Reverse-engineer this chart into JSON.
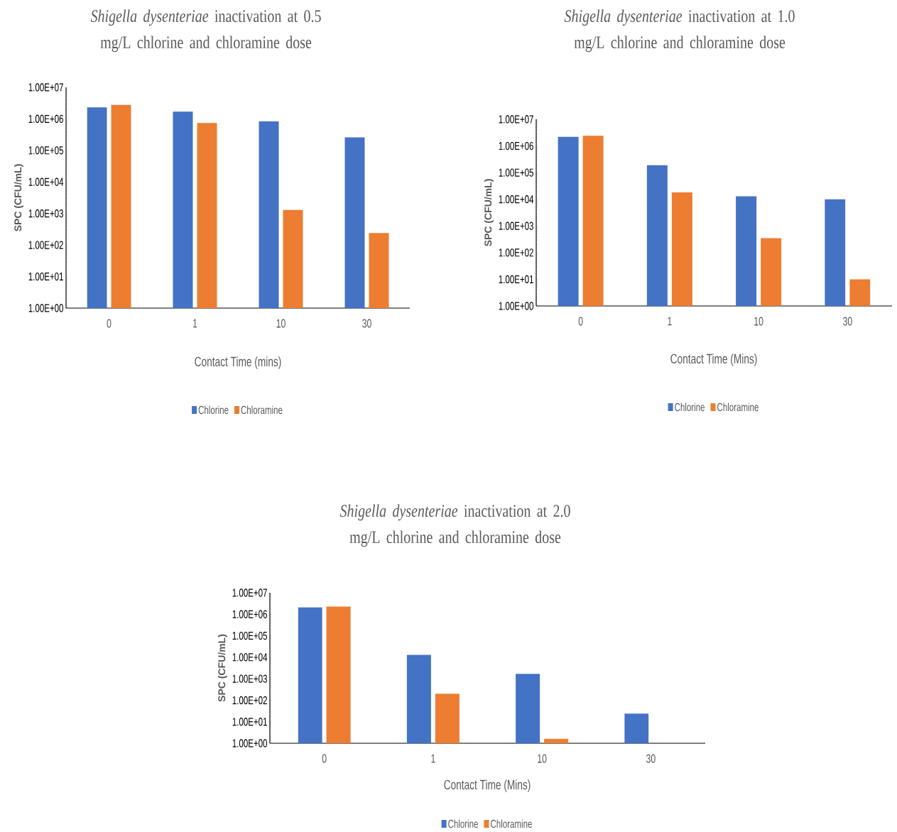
{
  "chart_data": [
    {
      "type": "bar",
      "title": "*Shigella dysenteriae* inactivation at 0.5 mg/L chlorine and chloramine dose",
      "xlabel": "Contact Time (mins)",
      "ylabel": "SPC (CFU/mL)",
      "categories": [
        "0",
        "1",
        "10",
        "30"
      ],
      "log": "y",
      "legend": "bottom",
      "ylim": [
        1,
        10000000
      ],
      "yticks": [
        {
          "value": 1,
          "label": "1.00E+00"
        },
        {
          "value": 10,
          "label": "1.00E+01"
        },
        {
          "value": 100,
          "label": "1.00E+02"
        },
        {
          "value": 1000,
          "label": "1.00E+03"
        },
        {
          "value": 10000,
          "label": "1.00E+04"
        },
        {
          "value": 100000,
          "label": "1.00E+05"
        },
        {
          "value": 1000000,
          "label": "1.00E+06"
        },
        {
          "value": 10000000,
          "label": "1.00E+07"
        }
      ],
      "series": [
        {
          "name": "Chlorine",
          "color": "#4472c4",
          "values": [
            2300000,
            1700000,
            830000,
            260000
          ]
        },
        {
          "name": "Chloramine",
          "color": "#ed7d31",
          "values": [
            2800000,
            740000,
            1300,
            240
          ]
        }
      ]
    },
    {
      "type": "bar",
      "title": "*Shigella dysenteriae* inactivation at 1.0 mg/L chlorine and chloramine dose",
      "xlabel": "Contact Time (Mins)",
      "ylabel": "SPC (CFU/mL)",
      "categories": [
        "0",
        "1",
        "10",
        "30"
      ],
      "log": "y",
      "legend": "bottom",
      "ylim": [
        1,
        10000000
      ],
      "yticks": [
        {
          "value": 1,
          "label": "1.00E+00"
        },
        {
          "value": 10,
          "label": "1.00E+01"
        },
        {
          "value": 100,
          "label": "1.00E+02"
        },
        {
          "value": 1000,
          "label": "1.00E+03"
        },
        {
          "value": 10000,
          "label": "1.00E+04"
        },
        {
          "value": 100000,
          "label": "1.00E+05"
        },
        {
          "value": 1000000,
          "label": "1.00E+06"
        },
        {
          "value": 10000000,
          "label": "1.00E+07"
        }
      ],
      "series": [
        {
          "name": "Chlorine",
          "color": "#4472c4",
          "values": [
            2200000,
            190000,
            13000,
            10000
          ]
        },
        {
          "name": "Chloramine",
          "color": "#ed7d31",
          "values": [
            2400000,
            18000,
            350,
            10
          ]
        }
      ]
    },
    {
      "type": "bar",
      "title": "*Shigella dysenteriae* inactivation at 2.0 mg/L chlorine and chloramine dose",
      "xlabel": "Contact Time (Mins)",
      "ylabel": "SPC (CFU/mL)",
      "categories": [
        "0",
        "1",
        "10",
        "30"
      ],
      "log": "y",
      "legend": "bottom",
      "ylim": [
        1,
        10000000
      ],
      "yticks": [
        {
          "value": 1,
          "label": "1.00E+00"
        },
        {
          "value": 10,
          "label": "1.00E+01"
        },
        {
          "value": 100,
          "label": "1.00E+02"
        },
        {
          "value": 1000,
          "label": "1.00E+03"
        },
        {
          "value": 10000,
          "label": "1.00E+04"
        },
        {
          "value": 100000,
          "label": "1.00E+05"
        },
        {
          "value": 1000000,
          "label": "1.00E+06"
        },
        {
          "value": 10000000,
          "label": "1.00E+07"
        }
      ],
      "series": [
        {
          "name": "Chlorine",
          "color": "#4472c4",
          "values": [
            2100000,
            13000,
            1700,
            24
          ]
        },
        {
          "name": "Chloramine",
          "color": "#ed7d31",
          "values": [
            2300000,
            200,
            1.6,
            null
          ]
        }
      ]
    }
  ]
}
